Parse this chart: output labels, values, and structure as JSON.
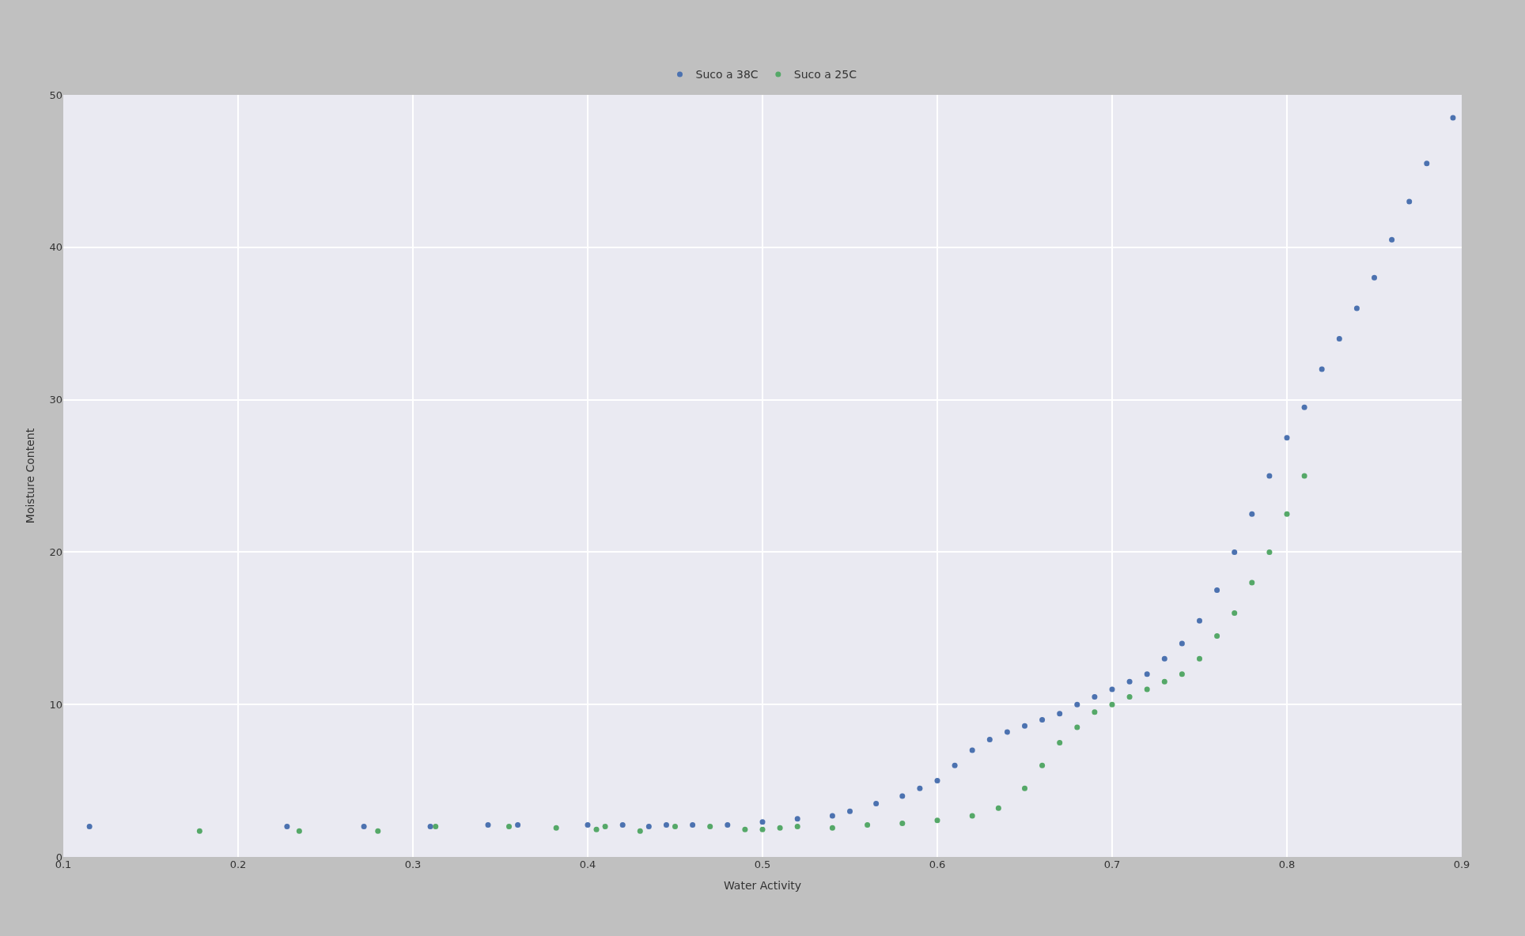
{
  "chart_data": {
    "type": "scatter",
    "xlabel": "Water Activity",
    "ylabel": "Moisture Content",
    "xlim": [
      0.1,
      0.9
    ],
    "xticks": [
      0.1,
      0.2,
      0.3,
      0.4,
      0.5,
      0.6,
      0.7,
      0.8,
      0.9
    ],
    "ylim": [
      0,
      50
    ],
    "yticks": [
      0,
      10,
      20,
      30,
      40,
      50
    ],
    "grid": true,
    "legend": "top",
    "marker": "circle",
    "series": [
      {
        "name": "Suco a 38C",
        "color": "#4c72b0",
        "x": [
          0.115,
          0.228,
          0.272,
          0.31,
          0.343,
          0.36,
          0.4,
          0.42,
          0.435,
          0.445,
          0.46,
          0.48,
          0.5,
          0.52,
          0.54,
          0.55,
          0.565,
          0.58,
          0.59,
          0.6,
          0.61,
          0.62,
          0.63,
          0.64,
          0.65,
          0.66,
          0.67,
          0.68,
          0.69,
          0.7,
          0.71,
          0.72,
          0.73,
          0.74,
          0.75,
          0.76,
          0.77,
          0.78,
          0.79,
          0.8,
          0.81,
          0.82,
          0.83,
          0.84,
          0.85,
          0.86,
          0.87,
          0.88,
          0.895
        ],
        "values": [
          2.0,
          2.0,
          2.0,
          2.0,
          2.1,
          2.1,
          2.1,
          2.1,
          2.0,
          2.1,
          2.1,
          2.1,
          2.3,
          2.5,
          2.7,
          3.0,
          3.5,
          4.0,
          4.5,
          5.0,
          6.0,
          7.0,
          7.7,
          8.2,
          8.6,
          9.0,
          9.4,
          10.0,
          10.5,
          11.0,
          11.5,
          12.0,
          13.0,
          14.0,
          15.5,
          17.5,
          20.0,
          22.5,
          25.0,
          27.5,
          29.5,
          32.0,
          34.0,
          36.0,
          38.0,
          40.5,
          43.0,
          45.5,
          48.5
        ]
      },
      {
        "name": "Suco a 25C",
        "color": "#55a868",
        "x": [
          0.178,
          0.235,
          0.28,
          0.313,
          0.355,
          0.382,
          0.405,
          0.41,
          0.43,
          0.45,
          0.47,
          0.49,
          0.5,
          0.51,
          0.52,
          0.54,
          0.56,
          0.58,
          0.6,
          0.62,
          0.635,
          0.65,
          0.66,
          0.67,
          0.68,
          0.69,
          0.7,
          0.71,
          0.72,
          0.73,
          0.74,
          0.75,
          0.76,
          0.77,
          0.78,
          0.79,
          0.8,
          0.81
        ],
        "values": [
          1.7,
          1.7,
          1.7,
          2.0,
          2.0,
          1.9,
          1.8,
          2.0,
          1.7,
          2.0,
          2.0,
          1.8,
          1.8,
          1.9,
          2.0,
          1.9,
          2.1,
          2.2,
          2.4,
          2.7,
          3.2,
          4.5,
          6.0,
          7.5,
          8.5,
          9.5,
          10.0,
          10.5,
          11.0,
          11.5,
          12.0,
          13.0,
          14.5,
          16.0,
          18.0,
          20.0,
          22.5,
          25.0
        ]
      }
    ]
  }
}
